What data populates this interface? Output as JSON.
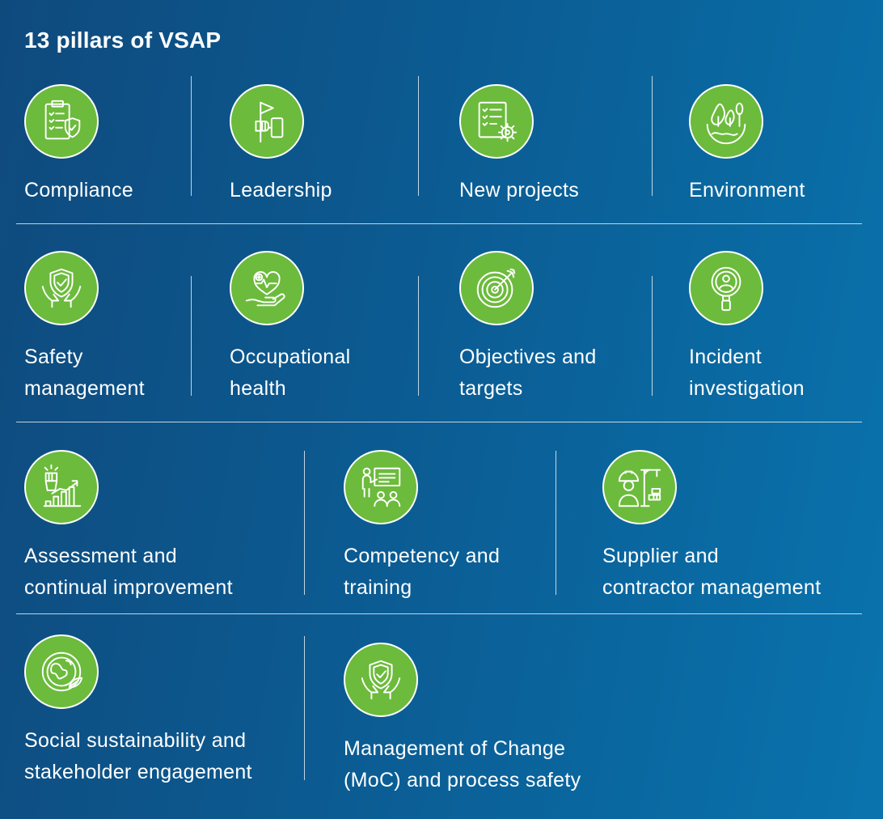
{
  "title": "13 pillars of VSAP",
  "colors": {
    "icon_fill": "#6cbb3c",
    "background_start": "#0f4a7d",
    "background_end": "#0a73ad"
  },
  "pillars": [
    {
      "icon": "compliance-checklist-shield-icon",
      "lines": [
        "Compliance"
      ]
    },
    {
      "icon": "leadership-flag-hand-icon",
      "lines": [
        "Leadership"
      ]
    },
    {
      "icon": "new-projects-document-gear-icon",
      "lines": [
        "New projects"
      ]
    },
    {
      "icon": "environment-trees-globe-icon",
      "lines": [
        "Environment"
      ]
    },
    {
      "icon": "safety-management-shield-hands-icon",
      "lines": [
        "Safety",
        "management"
      ]
    },
    {
      "icon": "occupational-health-heart-hand-icon",
      "lines": [
        "Occupational",
        "health"
      ]
    },
    {
      "icon": "objectives-target-icon",
      "lines": [
        "Objectives and",
        "targets"
      ]
    },
    {
      "icon": "incident-investigation-magnifier-icon",
      "lines": [
        "Incident",
        "investigation"
      ]
    },
    {
      "icon": "assessment-fist-growth-chart-icon",
      "lines": [
        "Assessment and",
        "continual improvement"
      ]
    },
    {
      "icon": "competency-training-presentation-icon",
      "lines": [
        "Competency and",
        "training"
      ]
    },
    {
      "icon": "supplier-contractor-worker-crane-icon",
      "lines": [
        "Supplier and",
        "contractor management"
      ]
    },
    {
      "icon": "social-sustainability-globe-leaf-icon",
      "lines": [
        "Social sustainability and",
        "stakeholder engagement"
      ]
    },
    {
      "icon": "management-of-change-shield-hands-icon",
      "lines": [
        "Management of Change",
        "(MoC) and process safety"
      ]
    }
  ]
}
